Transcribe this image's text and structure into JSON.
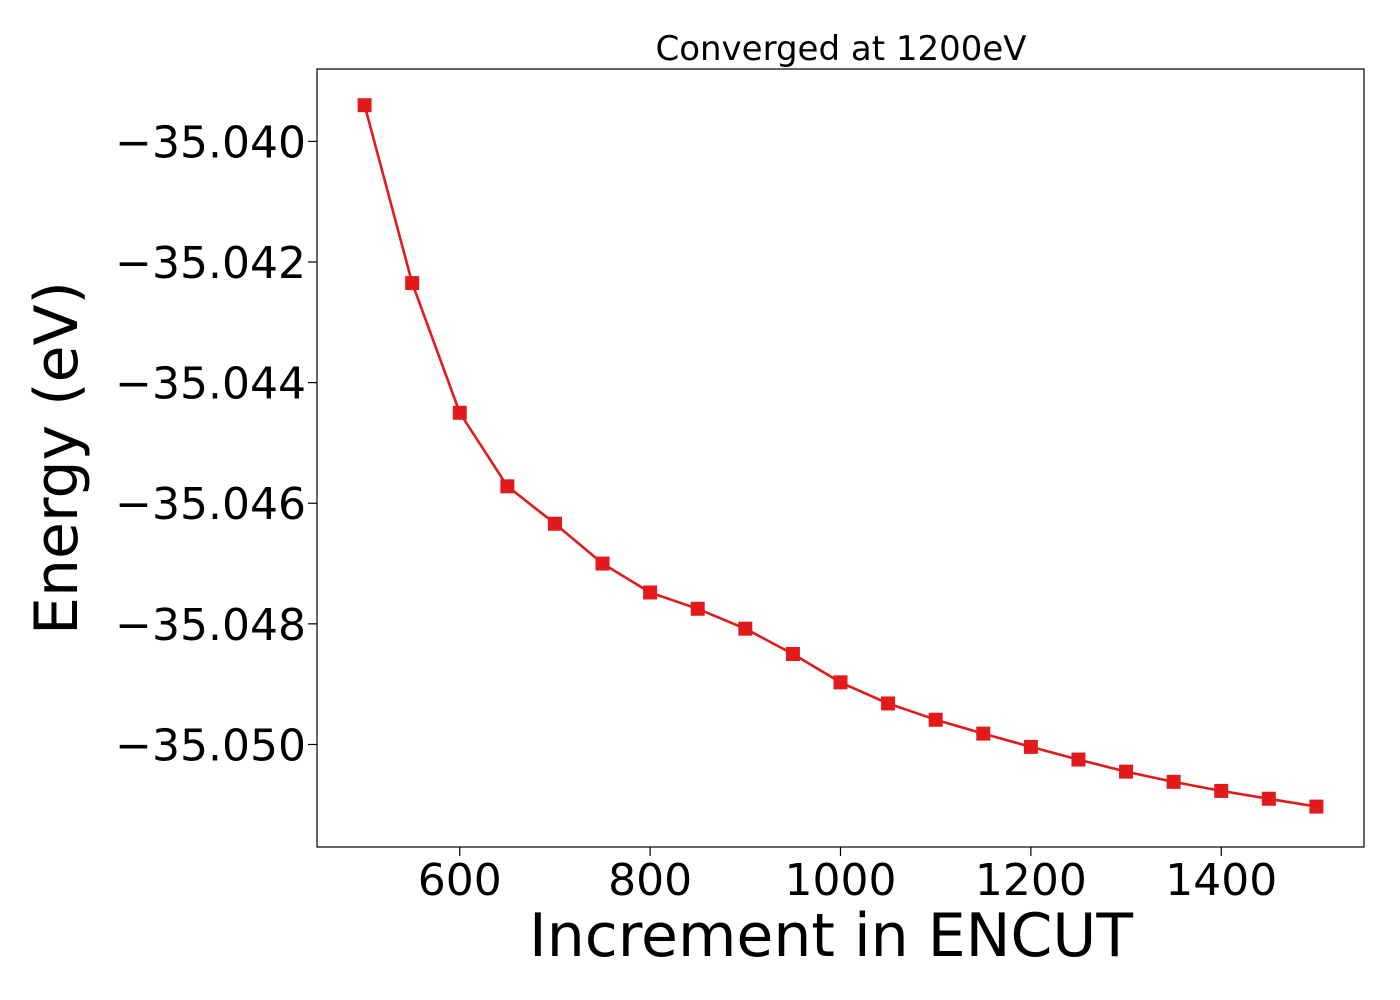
{
  "chart_data": {
    "type": "line",
    "title": "Converged at 1200eV",
    "xlabel": "Increment in ENCUT",
    "ylabel": "Energy (eV)",
    "xlim": [
      450,
      1550
    ],
    "ylim": [
      -35.0517,
      -35.0388
    ],
    "x_ticks": [
      600,
      800,
      1000,
      1200,
      1400
    ],
    "x_tick_labels": [
      "600",
      "800",
      "1000",
      "1200",
      "1400"
    ],
    "y_ticks": [
      -35.04,
      -35.042,
      -35.044,
      -35.046,
      -35.048,
      -35.05
    ],
    "y_tick_labels": [
      "−35.040",
      "−35.042",
      "−35.044",
      "−35.046",
      "−35.048",
      "−35.050"
    ],
    "grid": false,
    "marker": "square",
    "series": [
      {
        "color": "#e31a1c",
        "x": [
          500,
          550,
          600,
          650,
          700,
          750,
          800,
          850,
          900,
          950,
          1000,
          1050,
          1100,
          1150,
          1200,
          1250,
          1300,
          1350,
          1400,
          1450,
          1500
        ],
        "y": [
          -35.0394,
          -35.04235,
          -35.0445,
          -35.04572,
          -35.04634,
          -35.047,
          -35.04748,
          -35.04775,
          -35.04808,
          -35.0485,
          -35.04897,
          -35.04932,
          -35.04959,
          -35.04982,
          -35.05004,
          -35.05025,
          -35.05045,
          -35.05062,
          -35.05077,
          -35.0509,
          -35.05103
        ]
      }
    ]
  }
}
